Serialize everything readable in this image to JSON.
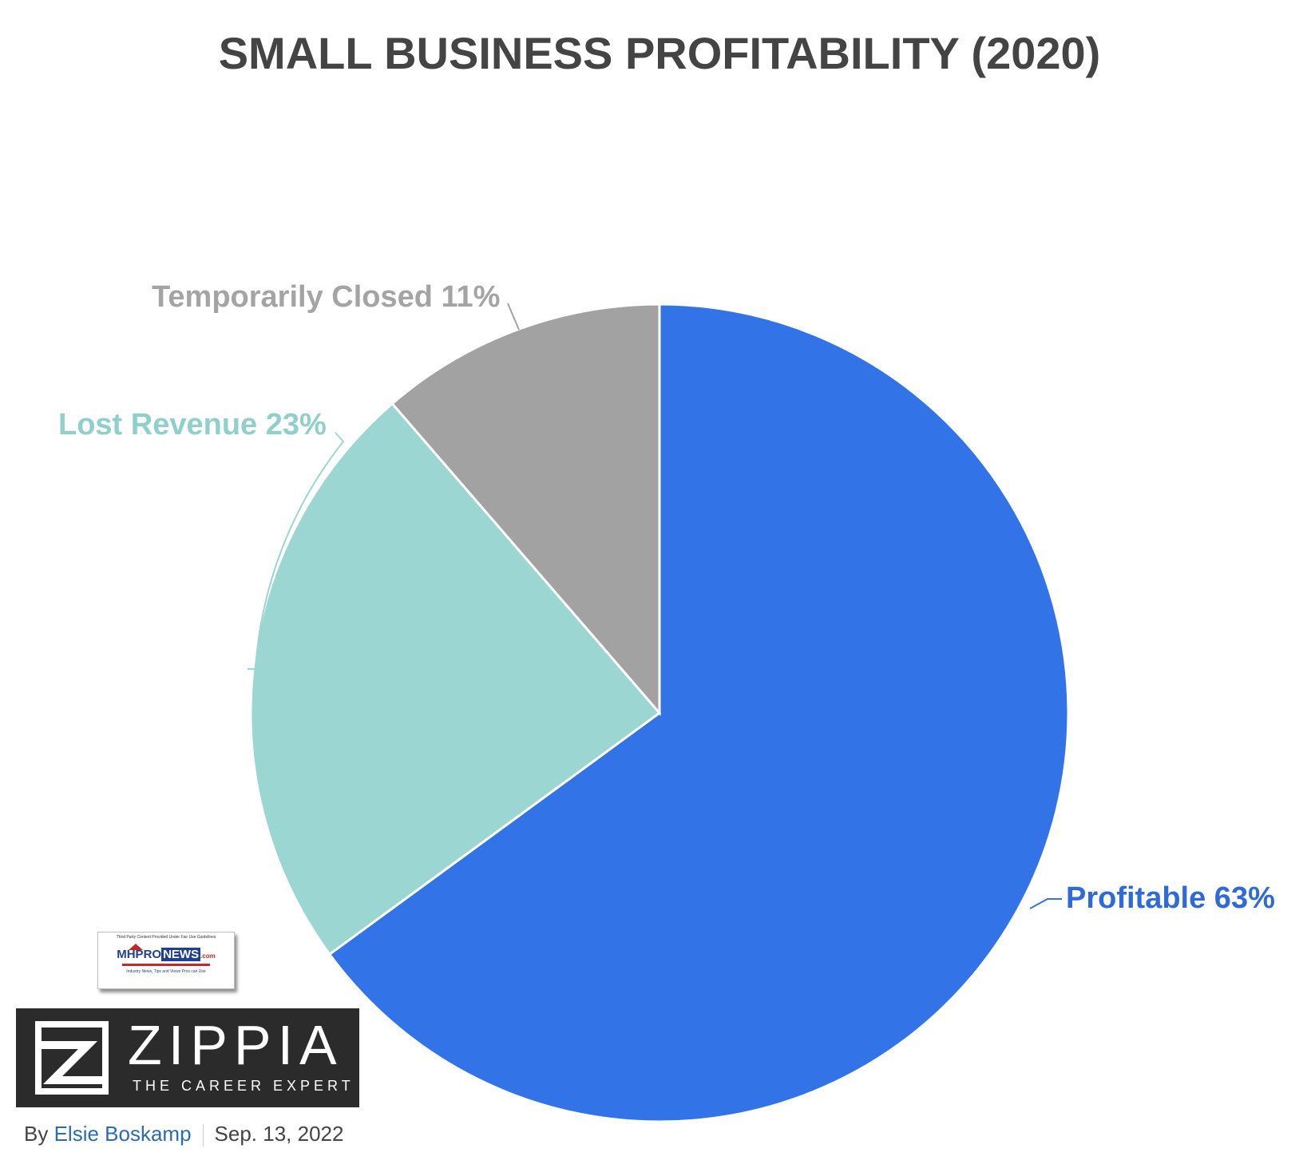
{
  "chart_data": {
    "type": "pie",
    "title": "SMALL BUSINESS PROFITABILITY (2020)",
    "slices": [
      {
        "label": "Profitable",
        "value": 63,
        "value_label": "63%",
        "display": "Profitable 63%",
        "color": "#3274e8"
      },
      {
        "label": "Lost Revenue",
        "value": 23,
        "value_label": "23%",
        "display": "Lost Revenue 23%",
        "color": "#9bd6d2"
      },
      {
        "label": "Temporarily Closed",
        "value": 11,
        "value_label": "11%",
        "display": "Temporarily Closed 11%",
        "color": "#a2a2a2"
      }
    ],
    "start": "12 o'clock",
    "direction": "clockwise",
    "legend": "none"
  },
  "badge": {
    "top_text": "Third Party Content Provided Under Fair Use Guidelines",
    "brand_prefix": "MHPRO",
    "brand_news": "NEWS",
    "brand_suffix": ".com",
    "tagline": "Industry News, Tips and Views Pros can Use"
  },
  "logo": {
    "name": "ZIPPIA",
    "tagline": "THE CAREER EXPERT"
  },
  "byline": {
    "by": "By",
    "author": "Elsie Boskamp",
    "date": "Sep. 13, 2022"
  },
  "colors": {
    "title": "#444444",
    "profitable_text": "#2f6ad8",
    "lost_revenue_text": "#8fd0cb",
    "temporarily_closed_text": "#a4a4a4"
  }
}
